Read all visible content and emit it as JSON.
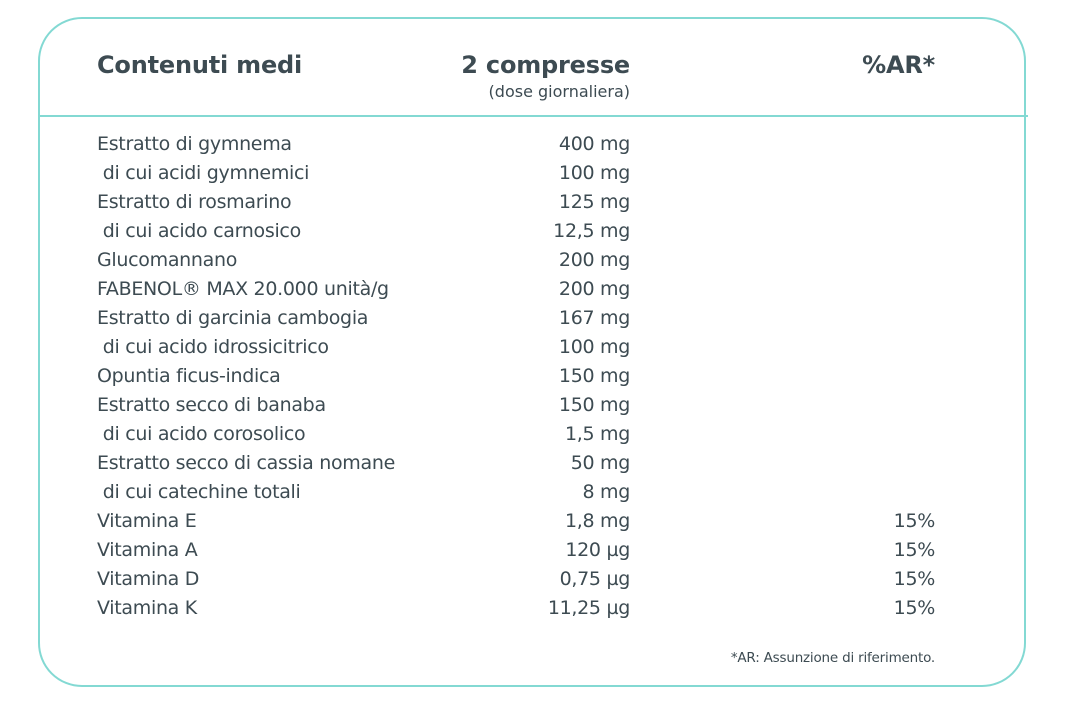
{
  "header": {
    "name": "Contenuti medi",
    "amount": "2 compresse",
    "amount_sub": "(dose giornaliera)",
    "ar": "%AR*"
  },
  "rows": [
    {
      "name": "Estratto di gymnema",
      "amount": "400 mg",
      "ar": ""
    },
    {
      "name": " di cui acidi gymnemici",
      "amount": "100 mg",
      "ar": ""
    },
    {
      "name": "Estratto di rosmarino",
      "amount": "125 mg",
      "ar": ""
    },
    {
      "name": " di cui acido carnosico",
      "amount": "12,5 mg",
      "ar": ""
    },
    {
      "name": "Glucomannano",
      "amount": "200 mg",
      "ar": ""
    },
    {
      "name": "FABENOL® MAX 20.000 unità/g",
      "amount": "200 mg",
      "ar": ""
    },
    {
      "name": "Estratto di garcinia cambogia",
      "amount": "167 mg",
      "ar": ""
    },
    {
      "name": " di cui acido idrossicitrico",
      "amount": "100 mg",
      "ar": ""
    },
    {
      "name": "Opuntia ficus-indica",
      "amount": "150 mg",
      "ar": ""
    },
    {
      "name": "Estratto secco di banaba",
      "amount": "150 mg",
      "ar": ""
    },
    {
      "name": " di cui acido corosolico",
      "amount": "1,5 mg",
      "ar": ""
    },
    {
      "name": "Estratto secco di cassia nomane",
      "amount": "50 mg",
      "ar": ""
    },
    {
      "name": " di cui catechine totali",
      "amount": "8 mg",
      "ar": ""
    },
    {
      "name": "Vitamina E",
      "amount": "1,8 mg",
      "ar": "15%"
    },
    {
      "name": "Vitamina A",
      "amount": "120 µg",
      "ar": "15%"
    },
    {
      "name": "Vitamina D",
      "amount": "0,75 µg",
      "ar": "15%"
    },
    {
      "name": "Vitamina K",
      "amount": "11,25 µg",
      "ar": "15%"
    }
  ],
  "footnote": "*AR: Assunzione di riferimento.",
  "colors": {
    "border": "#83d9d3",
    "text": "#3d4b52"
  }
}
